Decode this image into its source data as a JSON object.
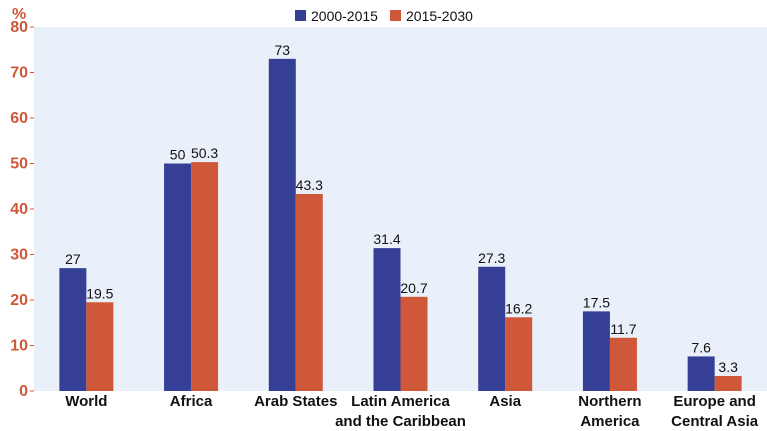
{
  "chart_data": {
    "type": "bar",
    "ylabel": "%",
    "ylim": [
      0,
      80
    ],
    "yticks": [
      0,
      10,
      20,
      30,
      40,
      50,
      60,
      70,
      80
    ],
    "grid": false,
    "legend_position": "top-center",
    "categories": [
      [
        "World"
      ],
      [
        "Africa"
      ],
      [
        "Arab States"
      ],
      [
        "Latin America",
        "and the Caribbean"
      ],
      [
        "Asia"
      ],
      [
        "Northern",
        "America"
      ],
      [
        "Europe and",
        "Central Asia"
      ]
    ],
    "series": [
      {
        "name": "2000-2015",
        "color": "#353f96",
        "values": [
          27,
          50,
          73,
          31.4,
          27.3,
          17.5,
          7.6
        ]
      },
      {
        "name": "2015-2030",
        "color": "#d0583a",
        "values": [
          19.5,
          50.3,
          43.3,
          20.7,
          16.2,
          11.7,
          3.3
        ]
      }
    ],
    "colors": {
      "plot_background": "#eaf0f9",
      "axis_tick_color": "#d0583a"
    }
  }
}
